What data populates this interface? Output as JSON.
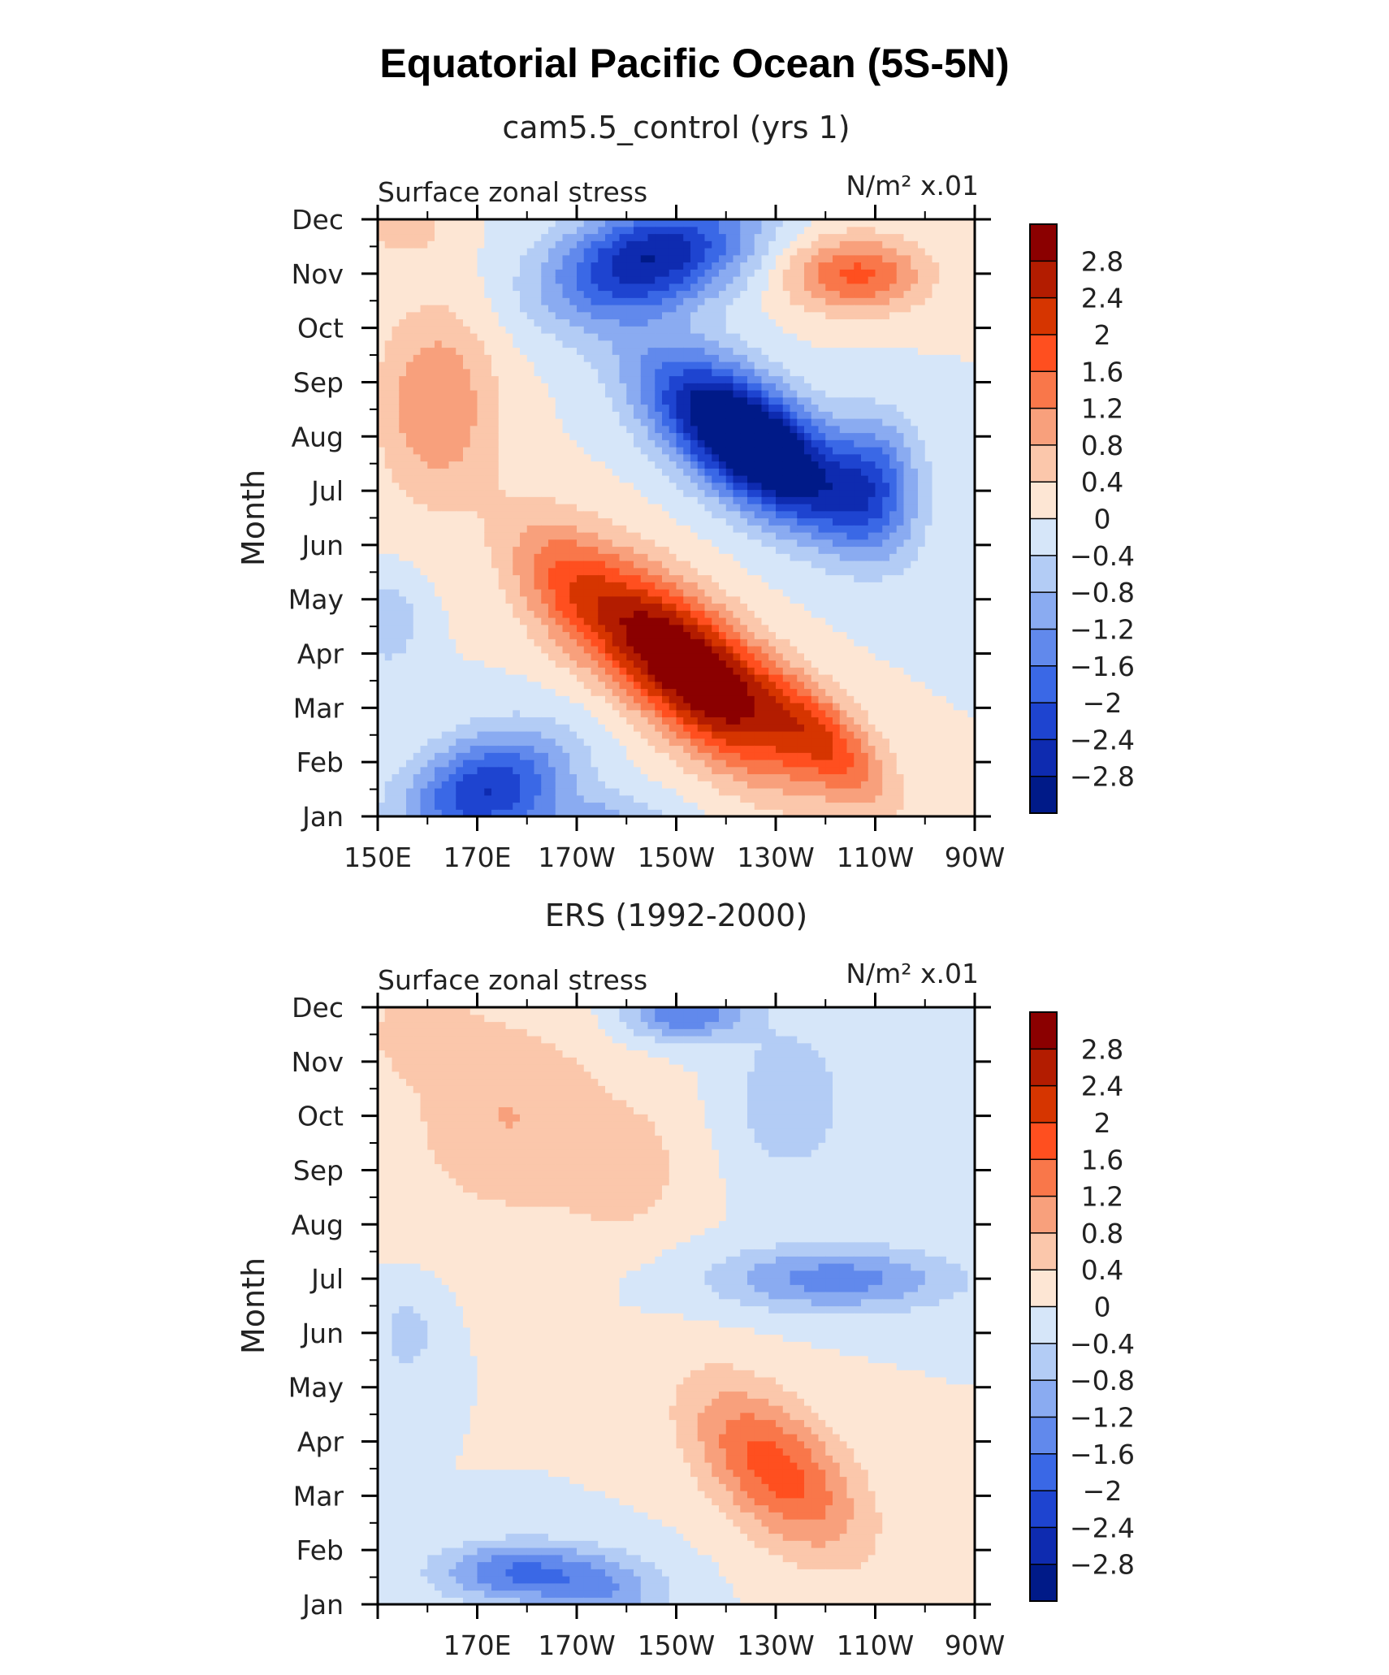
{
  "title": "Equatorial Pacific Ocean (5S-5N)",
  "chart_data": [
    {
      "type": "heatmap",
      "title": "cam5.5_control (yrs 1)",
      "left_label": "Surface zonal stress",
      "right_label": "N/m² x.01",
      "ylabel": "Month",
      "x_tick_labels": [
        "150E",
        "170E",
        "170W",
        "150W",
        "130W",
        "110W",
        "90W"
      ],
      "y_tick_labels": [
        "Jan",
        "Feb",
        "Mar",
        "Apr",
        "May",
        "Jun",
        "Jul",
        "Aug",
        "Sep",
        "Oct",
        "Nov",
        "Dec"
      ],
      "xlim": [
        150,
        270
      ],
      "ylim": [
        1,
        12
      ],
      "features": [
        {
          "x": 213,
          "y": 3.7,
          "sx": 20,
          "sy": 1.3,
          "tilt": -0.06,
          "amp": 3.6
        },
        {
          "x": 240,
          "y": 2.4,
          "sx": 13,
          "sy": 0.9,
          "tilt": -0.06,
          "amp": 1.6
        },
        {
          "x": 188,
          "y": 5.2,
          "sx": 13,
          "sy": 1.2,
          "tilt": -0.05,
          "amp": 1.2
        },
        {
          "x": 225,
          "y": 7.9,
          "sx": 20,
          "sy": 1.15,
          "tilt": -0.05,
          "amp": -4.2
        },
        {
          "x": 250,
          "y": 7.2,
          "sx": 9,
          "sy": 1.2,
          "tilt": 0,
          "amp": -1.6
        },
        {
          "x": 205,
          "y": 11.3,
          "sx": 20,
          "sy": 1.0,
          "tilt": 0.02,
          "amp": -2.8
        },
        {
          "x": 246,
          "y": 11.0,
          "sx": 14,
          "sy": 0.7,
          "tilt": 0,
          "amp": 1.7
        },
        {
          "x": 162,
          "y": 8.6,
          "sx": 12,
          "sy": 1.8,
          "tilt": 0,
          "amp": 1.2
        },
        {
          "x": 172,
          "y": 1.5,
          "sx": 16,
          "sy": 1.0,
          "tilt": 0.02,
          "amp": -2.4
        },
        {
          "x": 195,
          "y": 0.8,
          "sx": 14,
          "sy": 0.6,
          "tilt": 0,
          "amp": -1.0
        },
        {
          "x": 155,
          "y": 11.9,
          "sx": 9,
          "sy": 0.6,
          "tilt": 0,
          "amp": 0.6
        },
        {
          "x": 152,
          "y": 4.6,
          "sx": 6,
          "sy": 0.8,
          "tilt": 0,
          "amp": -0.8
        }
      ]
    },
    {
      "type": "heatmap",
      "title": "ERS (1992-2000)",
      "left_label": "Surface zonal stress",
      "right_label": "N/m² x.01",
      "ylabel": "Month",
      "x_tick_labels": [
        "170E",
        "170W",
        "150W",
        "130W",
        "110W",
        "90W"
      ],
      "y_tick_labels": [
        "Jan",
        "Feb",
        "Mar",
        "Apr",
        "May",
        "Jun",
        "Jul",
        "Aug",
        "Sep",
        "Oct",
        "Nov",
        "Dec"
      ],
      "xlim": [
        150,
        270
      ],
      "ylim": [
        1,
        12
      ],
      "features": [
        {
          "x": 230,
          "y": 3.5,
          "sx": 17,
          "sy": 1.3,
          "tilt": -0.05,
          "amp": 1.8
        },
        {
          "x": 242,
          "y": 7.0,
          "sx": 24,
          "sy": 0.6,
          "tilt": 0,
          "amp": -1.4
        },
        {
          "x": 178,
          "y": 1.6,
          "sx": 16,
          "sy": 0.55,
          "tilt": 0,
          "amp": -1.6
        },
        {
          "x": 196,
          "y": 1.2,
          "sx": 13,
          "sy": 0.7,
          "tilt": 0,
          "amp": -1.0
        },
        {
          "x": 212,
          "y": 11.9,
          "sx": 12,
          "sy": 0.5,
          "tilt": 0,
          "amp": -1.6
        },
        {
          "x": 233,
          "y": 10.3,
          "sx": 11,
          "sy": 1.3,
          "tilt": 0,
          "amp": -0.8
        },
        {
          "x": 176,
          "y": 10.0,
          "sx": 20,
          "sy": 1.9,
          "tilt": 0,
          "amp": 0.8
        },
        {
          "x": 200,
          "y": 9.0,
          "sx": 12,
          "sy": 1.2,
          "tilt": 0,
          "amp": 0.6
        },
        {
          "x": 158,
          "y": 11.6,
          "sx": 10,
          "sy": 0.8,
          "tilt": 0,
          "amp": 0.6
        },
        {
          "x": 156,
          "y": 6.0,
          "sx": 6,
          "sy": 0.8,
          "tilt": 0,
          "amp": -0.6
        }
      ]
    }
  ],
  "colorbar": {
    "labels": [
      "2.8",
      "2.4",
      "2",
      "1.6",
      "1.2",
      "0.8",
      "0.4",
      "0",
      "−0.4",
      "−0.8",
      "−1.2",
      "−1.6",
      "−2",
      "−2.4",
      "−2.8"
    ],
    "colors": [
      "#8b0000",
      "#b31c00",
      "#d63500",
      "#ff4f1f",
      "#f9774a",
      "#f8a07c",
      "#fbc7ab",
      "#fde6d4",
      "#d6e6f9",
      "#b3ccf5",
      "#8aabf1",
      "#6189ec",
      "#3a68e6",
      "#1e44d0",
      "#0e2bb0",
      "#001a88"
    ]
  }
}
